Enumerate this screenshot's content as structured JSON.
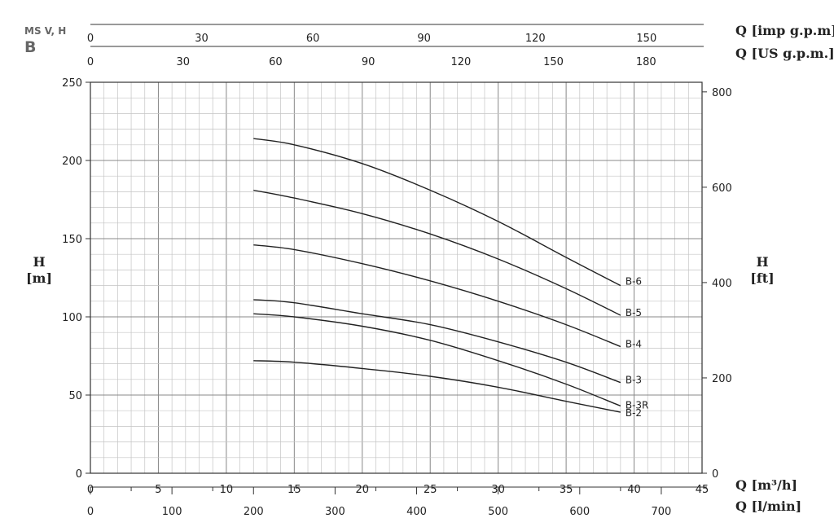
{
  "header": {
    "model": "MS V, H",
    "series": "B"
  },
  "chart_data": {
    "type": "line",
    "x_axis": {
      "label": "Q [m³/h]",
      "lim": [
        0,
        45
      ],
      "ticks": [
        0,
        5,
        10,
        15,
        20,
        25,
        30,
        35,
        40,
        45
      ]
    },
    "x_axis_lmin": {
      "label": "Q [l/min]",
      "ticks": [
        0,
        100,
        200,
        300,
        400,
        500,
        600,
        700
      ]
    },
    "x_axis_imp": {
      "label": "Q [imp g.p.m]",
      "ticks": [
        0,
        30,
        60,
        90,
        120,
        150
      ]
    },
    "x_axis_us": {
      "label": "Q [US g.p.m.]",
      "ticks": [
        0,
        30,
        60,
        90,
        120,
        150,
        180
      ]
    },
    "y_axis": {
      "label": "H",
      "unit": "[m]",
      "lim": [
        0,
        250
      ],
      "ticks": [
        0,
        50,
        100,
        150,
        200,
        250
      ]
    },
    "y_axis_right": {
      "label": "H",
      "unit": "[ft]",
      "ticks": [
        0,
        200,
        400,
        600,
        800
      ]
    },
    "grid": true,
    "series": [
      {
        "name": "B-6",
        "x": [
          12,
          15,
          20,
          25,
          30,
          35,
          39
        ],
        "y": [
          214,
          210,
          198,
          181,
          161,
          138,
          120
        ]
      },
      {
        "name": "B-5",
        "x": [
          12,
          15,
          20,
          25,
          30,
          35,
          39
        ],
        "y": [
          181,
          176,
          166,
          153,
          137,
          118,
          101
        ]
      },
      {
        "name": "B-4",
        "x": [
          12,
          15,
          20,
          25,
          30,
          35,
          39
        ],
        "y": [
          146,
          143,
          134,
          123,
          110,
          95,
          81
        ]
      },
      {
        "name": "B-3",
        "x": [
          12,
          15,
          20,
          25,
          30,
          35,
          39
        ],
        "y": [
          111,
          109,
          102,
          95,
          84,
          71,
          58
        ]
      },
      {
        "name": "B-3R",
        "x": [
          12,
          15,
          20,
          25,
          30,
          35,
          39
        ],
        "y": [
          102,
          100,
          94,
          85,
          72,
          57,
          43
        ]
      },
      {
        "name": "B-2",
        "x": [
          12,
          15,
          20,
          25,
          30,
          35,
          39
        ],
        "y": [
          72,
          71,
          67,
          62,
          55,
          46,
          39
        ]
      }
    ]
  }
}
